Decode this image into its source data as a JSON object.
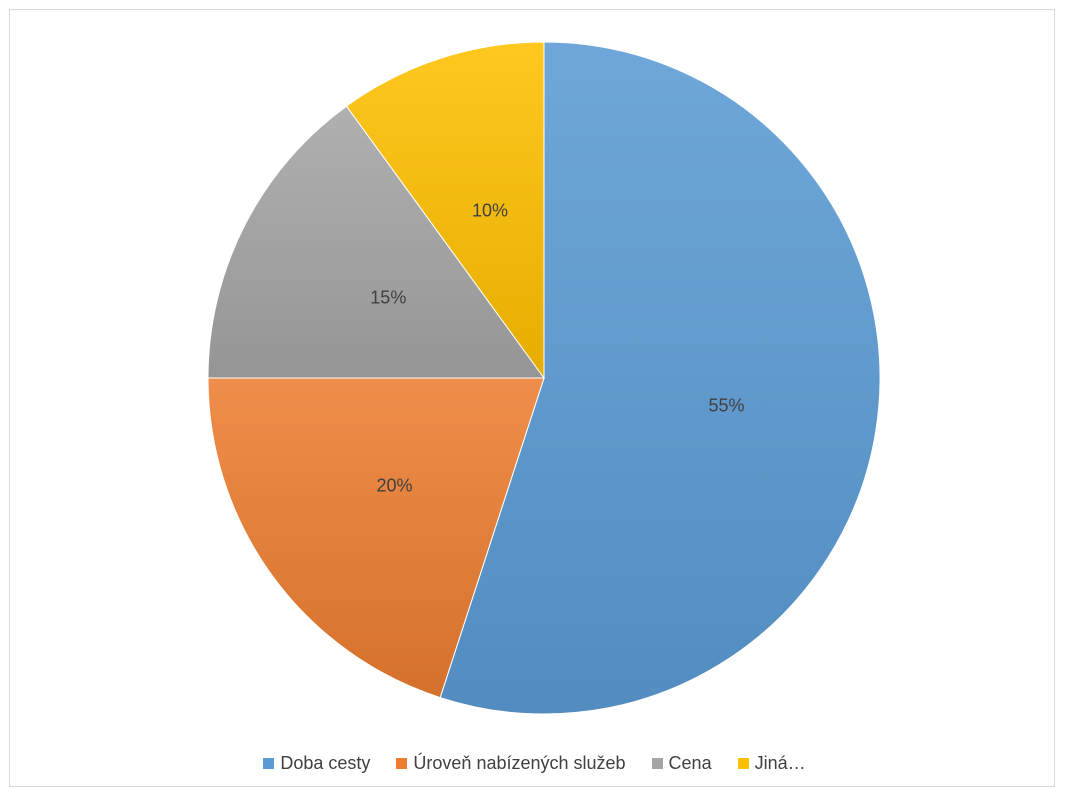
{
  "chart_data": {
    "type": "pie",
    "title": "",
    "categories": [
      "Doba cesty",
      "Úroveň nabízených služeb",
      "Cena",
      "Jiná…"
    ],
    "values": [
      55,
      20,
      15,
      10
    ],
    "data_labels": [
      "55%",
      "20%",
      "15%",
      "10%"
    ],
    "colors": [
      "#5b9bd5",
      "#ed7d31",
      "#a5a5a5",
      "#ffc000"
    ],
    "start_angle_deg": 0,
    "direction": "clockwise",
    "legend_position": "bottom"
  },
  "legend": {
    "items": [
      {
        "label": "Doba cesty",
        "color": "#5b9bd5"
      },
      {
        "label": "Úroveň nabízených služeb",
        "color": "#ed7d31"
      },
      {
        "label": "Cena",
        "color": "#a5a5a5"
      },
      {
        "label": "Jiná…",
        "color": "#ffc000"
      }
    ]
  }
}
